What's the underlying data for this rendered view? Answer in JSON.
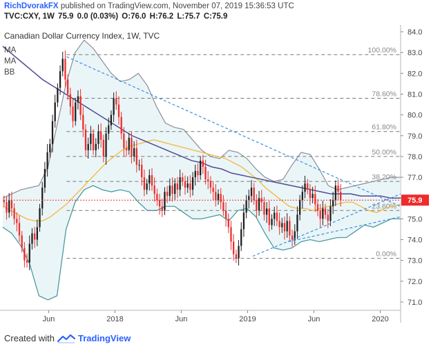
{
  "header": {
    "author": "RichDvorakFX",
    "published_text": "published on TradingView.com, November 07, 2019 15:36:53 UTC"
  },
  "ohlc": {
    "symbol": "TVC:CXY, 1W",
    "last": "75.9",
    "change": "0.0 (0.03%)",
    "open": "O:76.0",
    "high": "H:76.2",
    "low": "L:75.7",
    "close": "C:75.9"
  },
  "footer": {
    "created_with": "Created with",
    "brand": "TradingView"
  },
  "chart_data": {
    "type": "candlestick",
    "title": "Canadian Dollar Currency Index, 1W, TVC",
    "indicators": [
      "MA",
      "MA",
      "BB"
    ],
    "ylim": [
      70.6,
      84.2
    ],
    "y_ticks": [
      71.0,
      72.0,
      73.0,
      74.0,
      75.0,
      76.0,
      77.0,
      78.0,
      79.0,
      80.0,
      81.0,
      82.0,
      83.0,
      84.0
    ],
    "x_ticks": [
      "Jun",
      "2018",
      "Jun",
      "2019",
      "Jun",
      "2020"
    ],
    "x_tick_positions": [
      18,
      44,
      70,
      96,
      122,
      148
    ],
    "x_range": [
      0,
      156
    ],
    "last_price": "75.9",
    "last_price_value": 75.9,
    "fibonacci": {
      "high": 82.9,
      "low": 73.1,
      "levels": [
        {
          "label": "100.00%",
          "value": 82.9
        },
        {
          "label": "78.60%",
          "value": 80.8
        },
        {
          "label": "61.80%",
          "value": 79.2
        },
        {
          "label": "50.00%",
          "value": 78.0
        },
        {
          "label": "38.20%",
          "value": 76.8
        },
        {
          "label": "23.60%",
          "value": 75.4
        },
        {
          "label": "0.00%",
          "value": 73.1
        }
      ]
    },
    "trendlines": [
      {
        "x1": 25,
        "y1": 82.8,
        "x2": 156,
        "y2": 75.6
      },
      {
        "x1": 98,
        "y1": 73.2,
        "x2": 156,
        "y2": 76.2
      },
      {
        "x1": 112,
        "y1": 73.9,
        "x2": 156,
        "y2": 75.1
      }
    ],
    "closes": [
      75.8,
      75.3,
      75.9,
      75.5,
      75.0,
      74.8,
      74.2,
      73.6,
      73.0,
      72.9,
      73.8,
      74.3,
      74.0,
      74.6,
      75.5,
      76.5,
      77.4,
      78.2,
      78.6,
      79.7,
      80.6,
      81.3,
      82.1,
      82.7,
      81.7,
      81.0,
      80.4,
      79.7,
      80.6,
      80.9,
      80.0,
      79.3,
      78.3,
      78.6,
      79.1,
      78.3,
      78.6,
      79.2,
      78.8,
      78.0,
      79.1,
      79.5,
      80.0,
      80.8,
      80.5,
      79.9,
      79.1,
      78.4,
      78.3,
      78.9,
      78.0,
      78.4,
      77.6,
      77.6,
      77.0,
      76.4,
      76.7,
      77.1,
      76.6,
      76.2,
      75.9,
      75.6,
      75.4,
      76.3,
      76.1,
      76.6,
      76.2,
      76.7,
      76.4,
      77.0,
      76.8,
      76.5,
      76.7,
      76.4,
      77.0,
      77.3,
      77.1,
      77.8,
      77.5,
      76.9,
      76.8,
      76.5,
      76.3,
      75.9,
      76.2,
      75.8,
      75.4,
      75.0,
      74.6,
      73.9,
      73.3,
      73.1,
      73.7,
      74.5,
      75.3,
      75.9,
      76.1,
      76.5,
      75.9,
      75.4,
      76.0,
      75.8,
      75.2,
      75.5,
      74.7,
      75.0,
      75.3,
      74.9,
      74.6,
      74.8,
      74.4,
      74.9,
      74.2,
      74.0,
      74.4,
      75.2,
      75.9,
      76.3,
      76.7,
      76.4,
      76.0,
      76.2,
      75.7,
      75.4,
      75.0,
      75.5,
      75.2,
      74.9,
      75.6,
      75.9,
      76.6,
      76.3,
      75.9
    ],
    "ma_blue": [
      83.3,
      82.9,
      82.5,
      82.1,
      81.7,
      81.4,
      81.1,
      80.8,
      80.5,
      80.2,
      79.9,
      79.6,
      79.3,
      79.0,
      78.8,
      78.6,
      78.4,
      78.2,
      78.0,
      77.8,
      77.7,
      77.5,
      77.4,
      77.2,
      77.1,
      77.0,
      76.9,
      76.8,
      76.7,
      76.6,
      76.5,
      76.4,
      76.3,
      76.2,
      76.2,
      76.2,
      76.1,
      76.1,
      76.1,
      76.0,
      76.0
    ],
    "ma_yellow": [
      75.6,
      75.4,
      75.2,
      75.0,
      74.9,
      74.9,
      75.1,
      75.4,
      75.7,
      76.1,
      76.5,
      76.9,
      77.3,
      77.7,
      78.0,
      78.3,
      78.5,
      78.6,
      78.7,
      78.8,
      78.7,
      78.6,
      78.5,
      78.4,
      78.3,
      78.2,
      78.1,
      78.0,
      77.9,
      77.7,
      77.5,
      77.2,
      76.9,
      76.5,
      76.2,
      75.9,
      75.6,
      75.5,
      75.5,
      75.4,
      75.5,
      75.6,
      75.7,
      75.8,
      75.8,
      75.6,
      75.4,
      75.3,
      75.5,
      75.6,
      75.7
    ],
    "bb_upper": [
      76.0,
      76.2,
      76.4,
      76.5,
      76.6,
      77.5,
      79.5,
      81.5,
      83.0,
      83.6,
      83.2,
      82.6,
      82.0,
      81.6,
      81.7,
      82.0,
      81.4,
      80.4,
      79.6,
      79.4,
      79.3,
      78.8,
      78.3,
      78.0,
      77.9,
      78.3,
      78.2,
      77.9,
      77.4,
      77.0,
      76.8,
      76.9,
      77.6,
      78.2,
      78.1,
      77.4,
      76.6,
      76.4,
      76.5,
      76.6,
      76.7,
      76.8,
      76.9,
      77.0,
      77.0
    ],
    "bb_lower": [
      74.6,
      74.3,
      73.7,
      72.8,
      71.3,
      71.1,
      71.3,
      74.5,
      75.8,
      76.4,
      76.6,
      76.4,
      76.3,
      76.4,
      76.3,
      75.8,
      75.4,
      75.4,
      75.6,
      75.6,
      75.3,
      75.0,
      75.0,
      75.1,
      75.2,
      74.9,
      75.4,
      75.5,
      75.1,
      74.3,
      73.6,
      73.5,
      73.6,
      73.9,
      74.0,
      73.9,
      74.0,
      74.1,
      74.1,
      74.4,
      74.7,
      74.6,
      74.8,
      75.0,
      75.0
    ]
  }
}
